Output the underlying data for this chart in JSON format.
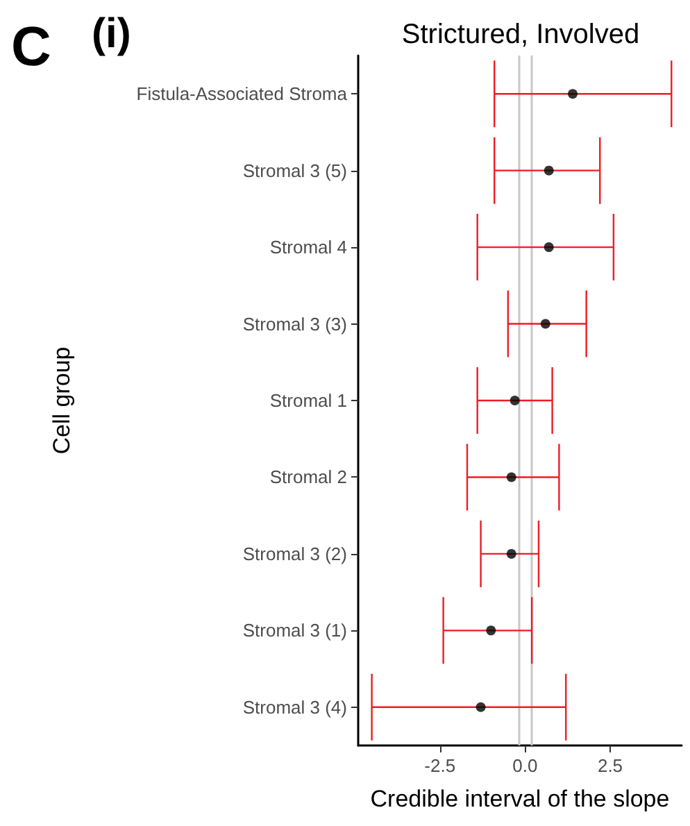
{
  "chart_data": {
    "type": "scatter",
    "orientation": "horizontal",
    "title": "Strictured, Involved",
    "xlabel": "Credible interval of the slope",
    "ylabel": "Cell group",
    "annotations": [
      "C",
      "(i)"
    ],
    "categories": [
      "Fistula-Associated Stroma",
      "Stromal 3 (5)",
      "Stromal 4",
      "Stromal 3 (3)",
      "Stromal 1",
      "Stromal 2",
      "Stromal 3 (2)",
      "Stromal 3 (1)",
      "Stromal 3 (4)"
    ],
    "series": [
      {
        "color": "#000000",
        "values": [
          1.4,
          0.7,
          0.7,
          0.6,
          -0.3,
          -0.4,
          -0.4,
          -1.0,
          -1.3
        ],
        "errors": [
          [
            -0.9,
            4.3
          ],
          [
            -0.9,
            2.2
          ],
          [
            -1.4,
            2.6
          ],
          [
            -0.5,
            1.8
          ],
          [
            -1.4,
            0.8
          ],
          [
            -1.7,
            1.0
          ],
          [
            -1.3,
            0.4
          ],
          [
            -2.4,
            0.2
          ],
          [
            -4.5,
            1.2
          ]
        ]
      }
    ],
    "xlim": [
      -4.9,
      4.6
    ],
    "xticks": [
      {
        "value": -2.5,
        "label": "-2.5"
      },
      {
        "value": 0,
        "label": "0.0"
      },
      {
        "value": 2.5,
        "label": "2.5"
      }
    ],
    "ref_lines": [
      {
        "axis": "x",
        "value": -0.2,
        "color": "#c8c8c8"
      },
      {
        "axis": "x",
        "value": 0.2,
        "color": "#c8c8c8"
      }
    ],
    "marker": "circle"
  }
}
